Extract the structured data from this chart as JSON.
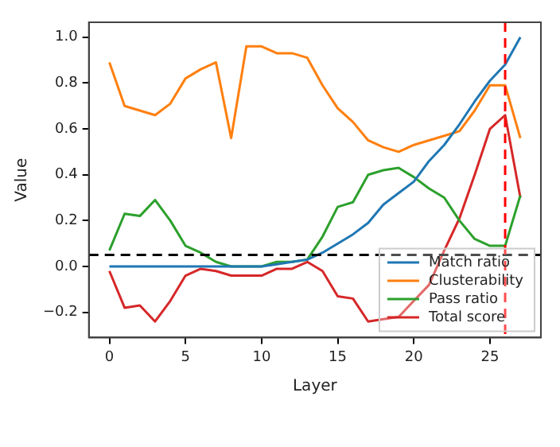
{
  "chart_data": {
    "type": "line",
    "xlabel": "Layer",
    "ylabel": "Value",
    "x": [
      0,
      1,
      2,
      3,
      4,
      5,
      6,
      7,
      8,
      9,
      10,
      11,
      12,
      13,
      14,
      15,
      16,
      17,
      18,
      19,
      20,
      21,
      22,
      23,
      24,
      25,
      26,
      27
    ],
    "series": [
      {
        "name": "Match ratio",
        "color": "#1f77b4",
        "values": [
          0,
          0,
          0,
          0,
          0,
          0,
          0,
          0,
          0,
          0,
          0,
          0.01,
          0.02,
          0.03,
          0.06,
          0.1,
          0.14,
          0.19,
          0.27,
          0.32,
          0.37,
          0.46,
          0.53,
          0.62,
          0.72,
          0.81,
          0.88,
          1.0
        ]
      },
      {
        "name": "Clusterability",
        "color": "#ff7f0e",
        "values": [
          0.89,
          0.7,
          0.68,
          0.66,
          0.71,
          0.82,
          0.86,
          0.89,
          0.56,
          0.96,
          0.96,
          0.93,
          0.93,
          0.91,
          0.79,
          0.69,
          0.63,
          0.55,
          0.52,
          0.5,
          0.53,
          0.55,
          0.57,
          0.59,
          0.68,
          0.79,
          0.79,
          0.56
        ]
      },
      {
        "name": "Pass ratio",
        "color": "#2ca02c",
        "values": [
          0.07,
          0.23,
          0.22,
          0.29,
          0.2,
          0.09,
          0.06,
          0.02,
          0.0,
          0.0,
          0.0,
          0.02,
          0.02,
          0.03,
          0.13,
          0.26,
          0.28,
          0.4,
          0.42,
          0.43,
          0.39,
          0.34,
          0.3,
          0.2,
          0.12,
          0.09,
          0.09,
          0.31
        ]
      },
      {
        "name": "Total score",
        "color": "#d62728",
        "values": [
          -0.02,
          -0.18,
          -0.17,
          -0.24,
          -0.15,
          -0.04,
          -0.01,
          -0.02,
          -0.04,
          -0.04,
          -0.04,
          -0.01,
          -0.01,
          0.02,
          -0.02,
          -0.13,
          -0.14,
          -0.24,
          -0.23,
          -0.22,
          -0.15,
          -0.08,
          0.07,
          0.21,
          0.4,
          0.6,
          0.66,
          0.3
        ]
      }
    ],
    "xlim": [
      -1.35,
      28.35
    ],
    "xticks": [
      0,
      5,
      10,
      15,
      20,
      25
    ],
    "ylim": [
      -0.31,
      1.065
    ],
    "yticks": [
      {
        "value": -0.2,
        "label": "−0.2"
      },
      {
        "value": 0,
        "label": "0.0"
      },
      {
        "value": 0.2,
        "label": "0.2"
      },
      {
        "value": 0.4,
        "label": "0.4"
      },
      {
        "value": 0.6,
        "label": "0.6"
      },
      {
        "value": 0.8,
        "label": "0.8"
      },
      {
        "value": 1,
        "label": "1.0"
      }
    ],
    "ref_lines": [
      {
        "axis": "y",
        "value": 0.05,
        "color": "#000000",
        "line_style": "dashed"
      },
      {
        "axis": "x",
        "value": 26,
        "color": "#ff0000",
        "line_style": "dashed"
      }
    ],
    "grid": false,
    "legend": "bottom right",
    "marker": "none",
    "line_style": "solid"
  }
}
